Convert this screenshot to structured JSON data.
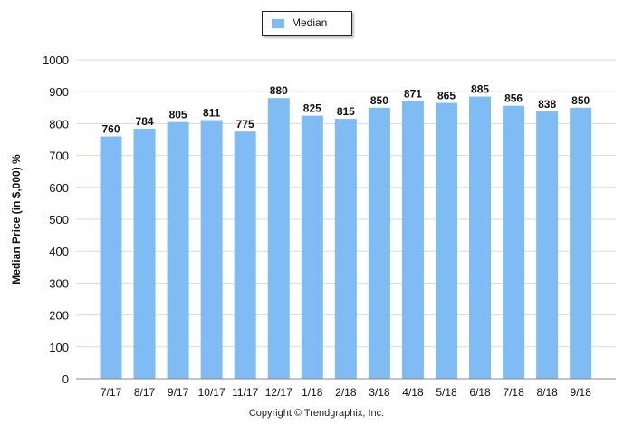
{
  "chart_data": {
    "type": "bar",
    "categories": [
      "7/17",
      "8/17",
      "9/17",
      "10/17",
      "11/17",
      "12/17",
      "1/18",
      "2/18",
      "3/18",
      "4/18",
      "5/18",
      "6/18",
      "7/18",
      "8/18",
      "9/18"
    ],
    "series": [
      {
        "name": "Median",
        "values": [
          760,
          784,
          805,
          811,
          775,
          880,
          825,
          815,
          850,
          871,
          865,
          885,
          856,
          838,
          850
        ],
        "color": "#7fbcf3"
      }
    ],
    "ylabel": "Median Price (in $,000) %",
    "ylim": [
      0,
      1000
    ],
    "yticks": [
      0,
      100,
      200,
      300,
      400,
      500,
      600,
      700,
      800,
      900,
      1000
    ],
    "grid": true,
    "legend_position": "top-center",
    "data_labels": true
  },
  "legend": {
    "label": "Median"
  },
  "footer": {
    "copyright": "Copyright © Trendgraphix, Inc."
  }
}
